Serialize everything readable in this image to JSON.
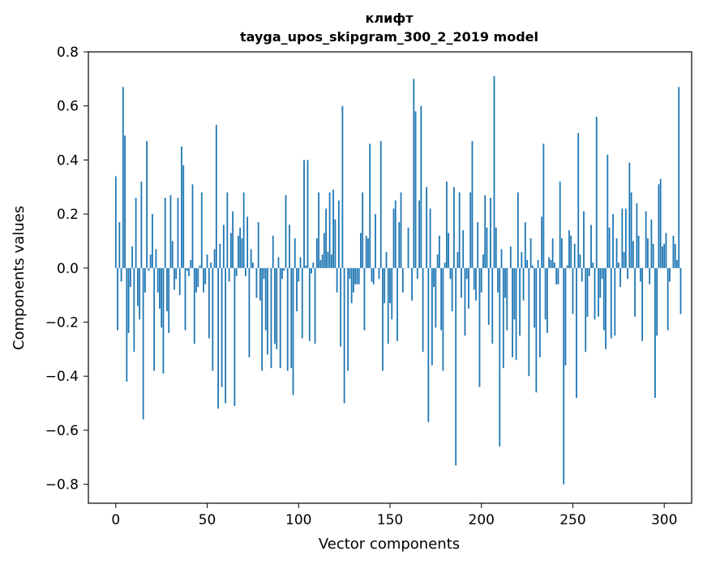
{
  "chart_data": {
    "type": "bar",
    "title_line1": "клифт",
    "title_line2": "tayga_upos_skipgram_300_2_2019 model",
    "xlabel": "Vector components",
    "ylabel": "Components values",
    "xlim": [
      -15,
      315
    ],
    "ylim": [
      -0.87,
      0.8
    ],
    "xticks": [
      0,
      50,
      100,
      150,
      200,
      250,
      300
    ],
    "xtick_labels": [
      "0",
      "50",
      "100",
      "150",
      "200",
      "250",
      "300"
    ],
    "yticks": [
      -0.8,
      -0.6,
      -0.4,
      -0.2,
      0.0,
      0.2,
      0.4,
      0.6,
      0.8
    ],
    "ytick_labels": [
      "−0.8",
      "−0.6",
      "−0.4",
      "−0.2",
      "0.0",
      "0.2",
      "0.4",
      "0.6",
      "0.8"
    ],
    "bar_color": "#1f77b4",
    "values": [
      0.34,
      -0.23,
      0.17,
      -0.05,
      0.67,
      0.49,
      -0.42,
      -0.24,
      -0.07,
      0.08,
      -0.31,
      0.26,
      -0.14,
      -0.19,
      0.32,
      -0.56,
      -0.09,
      0.47,
      -0.01,
      0.05,
      0.2,
      -0.38,
      0.07,
      -0.09,
      -0.15,
      -0.22,
      -0.39,
      0.26,
      -0.16,
      -0.24,
      0.27,
      0.1,
      -0.08,
      -0.04,
      0.26,
      -0.1,
      0.45,
      0.38,
      -0.23,
      -0.01,
      -0.03,
      0.03,
      0.31,
      -0.28,
      -0.09,
      -0.07,
      0.01,
      0.28,
      -0.09,
      -0.06,
      0.05,
      -0.26,
      0.02,
      -0.38,
      0.07,
      0.53,
      -0.52,
      0.09,
      -0.44,
      0.16,
      -0.5,
      0.28,
      -0.05,
      0.13,
      0.21,
      -0.51,
      -0.03,
      0.12,
      0.15,
      0.11,
      0.28,
      -0.03,
      0.19,
      -0.33,
      0.07,
      0.02,
      0.0,
      -0.11,
      0.17,
      -0.12,
      -0.38,
      -0.04,
      -0.23,
      -0.32,
      0.0,
      -0.37,
      0.12,
      -0.28,
      -0.3,
      0.04,
      -0.37,
      -0.04,
      -0.01,
      0.27,
      -0.38,
      0.16,
      -0.37,
      -0.47,
      0.11,
      -0.16,
      -0.05,
      0.04,
      -0.26,
      0.4,
      0.01,
      0.4,
      -0.27,
      -0.02,
      0.02,
      -0.28,
      0.11,
      0.28,
      0.03,
      0.05,
      0.13,
      0.22,
      0.06,
      0.28,
      0.05,
      0.29,
      0.18,
      -0.09,
      0.25,
      -0.29,
      0.6,
      -0.5,
      0.0,
      -0.38,
      -0.04,
      -0.13,
      -0.09,
      -0.06,
      -0.06,
      -0.06,
      0.13,
      0.28,
      -0.23,
      0.12,
      0.11,
      0.46,
      -0.05,
      -0.06,
      0.2,
      0.0,
      -0.04,
      0.47,
      -0.38,
      -0.13,
      0.06,
      -0.28,
      -0.13,
      -0.19,
      0.22,
      0.25,
      -0.27,
      0.17,
      0.28,
      -0.09,
      0.0,
      0.0,
      0.15,
      0.0,
      -0.12,
      0.7,
      0.58,
      -0.04,
      0.25,
      0.6,
      -0.31,
      0.0,
      0.3,
      -0.57,
      0.22,
      -0.36,
      -0.07,
      -0.22,
      0.05,
      0.12,
      -0.23,
      -0.38,
      0.02,
      0.32,
      0.13,
      -0.04,
      -0.16,
      0.3,
      -0.73,
      0.06,
      0.28,
      -0.11,
      0.14,
      -0.25,
      -0.04,
      -0.15,
      0.28,
      0.47,
      -0.08,
      -0.12,
      0.17,
      -0.44,
      -0.09,
      0.05,
      0.27,
      0.15,
      -0.21,
      0.26,
      -0.28,
      0.71,
      0.15,
      -0.09,
      -0.66,
      0.07,
      -0.37,
      -0.11,
      -0.23,
      0.0,
      0.08,
      -0.33,
      -0.19,
      -0.34,
      0.28,
      -0.25,
      0.06,
      -0.12,
      0.17,
      0.03,
      -0.4,
      0.11,
      0.01,
      -0.22,
      -0.46,
      0.03,
      -0.33,
      0.19,
      0.46,
      -0.19,
      -0.24,
      0.04,
      0.03,
      0.11,
      0.02,
      -0.06,
      -0.06,
      0.32,
      0.11,
      -0.8,
      -0.36,
      0.01,
      0.14,
      0.12,
      -0.17,
      0.09,
      -0.48,
      0.5,
      0.05,
      -0.05,
      0.21,
      -0.31,
      -0.18,
      -0.03,
      0.16,
      0.02,
      -0.19,
      0.56,
      -0.18,
      -0.11,
      -0.04,
      -0.23,
      -0.3,
      0.42,
      0.15,
      -0.26,
      0.2,
      -0.25,
      0.11,
      0.02,
      -0.07,
      0.22,
      0.06,
      0.22,
      -0.04,
      0.39,
      0.28,
      0.1,
      -0.18,
      0.24,
      0.12,
      -0.05,
      -0.27,
      0.0,
      0.21,
      0.11,
      -0.06,
      0.18,
      0.09,
      -0.48,
      -0.25,
      0.31,
      0.33,
      0.08,
      0.09,
      0.13,
      -0.23,
      -0.05,
      0.0,
      0.12,
      0.09,
      0.03,
      0.67,
      -0.17
    ]
  }
}
